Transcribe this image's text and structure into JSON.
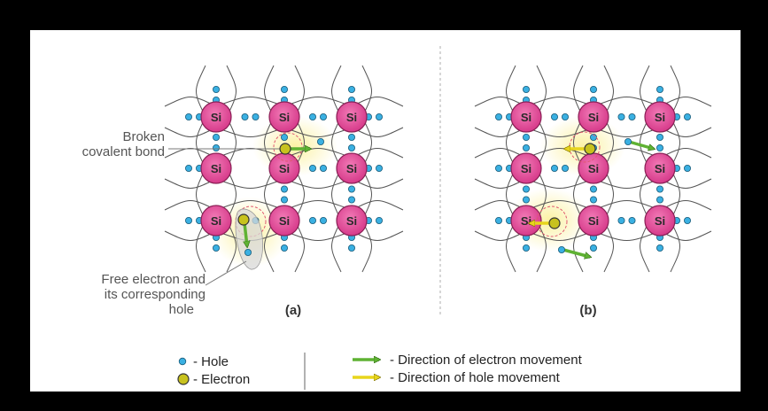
{
  "atom_label": "Si",
  "panel_a": {
    "label": "(a)",
    "broken_bond_label_line1": "Broken",
    "broken_bond_label_line2": "covalent bond",
    "free_electron_label_line1": "Free electron and",
    "free_electron_label_line2": "its corresponding",
    "free_electron_label_line3": "hole"
  },
  "panel_b": {
    "label": "(b)"
  },
  "legend": {
    "hole": "- Hole",
    "electron": "- Electron",
    "electron_movement": "- Direction of electron movement",
    "hole_movement": "- Direction of hole movement"
  },
  "colors": {
    "atom_fill": "#e44c9a",
    "hole_fill": "#3ab0e2",
    "electron_fill": "#c8c21e",
    "electron_arrow": "#6bbf3a",
    "hole_arrow": "#e8d51c",
    "glow": "#fbf3a8"
  }
}
